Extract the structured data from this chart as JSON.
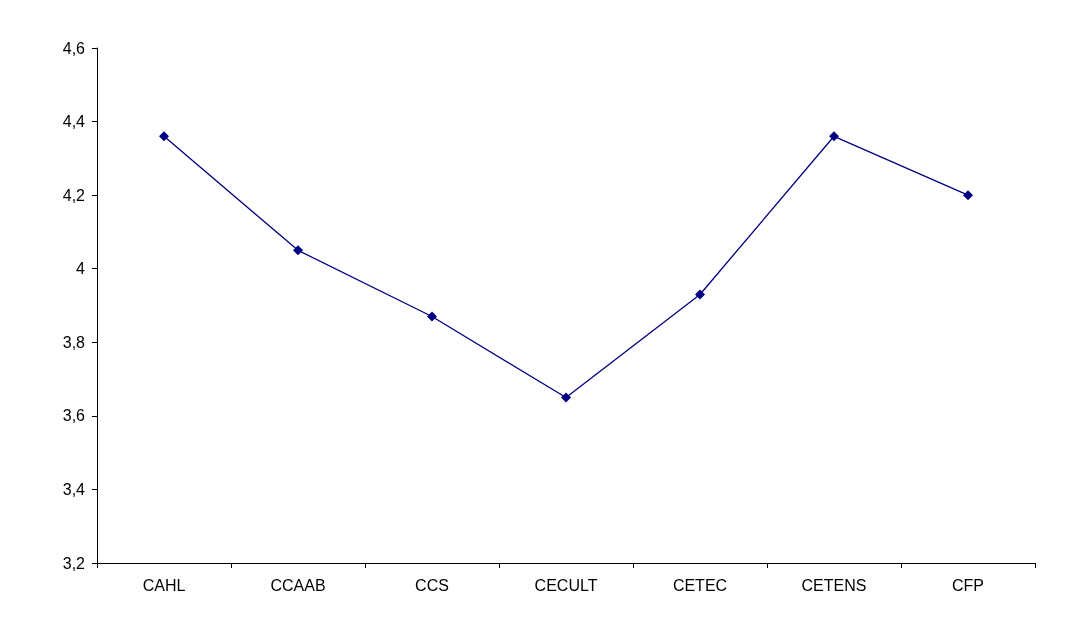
{
  "chart_data": {
    "type": "line",
    "categories": [
      "CAHL",
      "CCAAB",
      "CCS",
      "CECULT",
      "CETEC",
      "CETENS",
      "CFP"
    ],
    "series": [
      {
        "color": "#000080",
        "values": [
          4.36,
          4.05,
          3.87,
          3.65,
          3.93,
          4.36,
          4.2
        ]
      }
    ],
    "ylim": [
      3.2,
      4.6
    ],
    "yticks": [
      {
        "value": 3.2,
        "label": "3,2"
      },
      {
        "value": 3.4,
        "label": "3,4"
      },
      {
        "value": 3.6,
        "label": "3,6"
      },
      {
        "value": 3.8,
        "label": "3,8"
      },
      {
        "value": 4,
        "label": "4"
      },
      {
        "value": 4.2,
        "label": "4,2"
      },
      {
        "value": 4.4,
        "label": "4,4"
      },
      {
        "value": 4.6,
        "label": "4,6"
      }
    ],
    "grid": false,
    "marker": "diamond",
    "line_style": "solid"
  }
}
